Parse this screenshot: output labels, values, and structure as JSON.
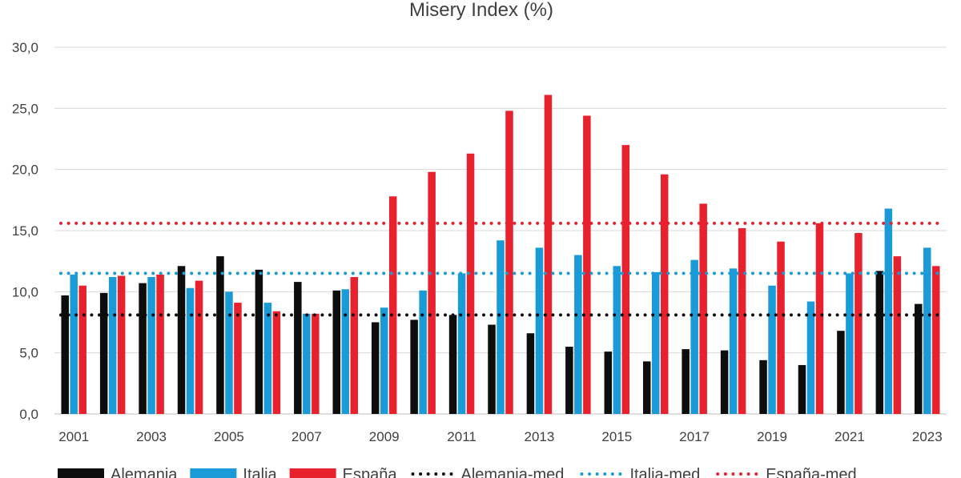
{
  "chart_data": {
    "type": "bar",
    "title": "Misery Index (%)",
    "xlabel": "",
    "ylabel": "",
    "ylim": [
      0,
      30
    ],
    "yticks": [
      "0,0",
      "5,0",
      "10,0",
      "15,0",
      "20,0",
      "25,0",
      "30,0"
    ],
    "grid": true,
    "legend_position": "bottom",
    "categories": [
      "2001",
      "2002",
      "2003",
      "2004",
      "2005",
      "2006",
      "2007",
      "2008",
      "2009",
      "2010",
      "2011",
      "2012",
      "2013",
      "2014",
      "2015",
      "2016",
      "2017",
      "2018",
      "2019",
      "2020",
      "2021",
      "2022",
      "2023"
    ],
    "xtick_labels": [
      "2001",
      "2003",
      "2005",
      "2007",
      "2009",
      "2011",
      "2013",
      "2015",
      "2017",
      "2019",
      "2021",
      "2023"
    ],
    "series": [
      {
        "name": "Alemania",
        "color": "#0d0d0d",
        "values": [
          9.7,
          9.9,
          10.7,
          12.1,
          12.9,
          11.8,
          10.8,
          10.1,
          7.5,
          7.7,
          8.1,
          7.3,
          6.6,
          5.5,
          5.1,
          4.3,
          5.3,
          5.2,
          4.4,
          4.0,
          6.8,
          11.7,
          9.0
        ]
      },
      {
        "name": "Italia",
        "color": "#1a9ad6",
        "values": [
          11.4,
          11.2,
          11.2,
          10.3,
          10.0,
          9.1,
          8.2,
          10.2,
          8.7,
          10.1,
          11.5,
          14.2,
          13.6,
          13.0,
          12.1,
          11.6,
          12.6,
          11.9,
          10.5,
          9.2,
          11.5,
          16.8,
          13.6
        ]
      },
      {
        "name": "España",
        "color": "#e8212e",
        "values": [
          10.5,
          11.3,
          11.4,
          10.9,
          9.1,
          8.4,
          8.2,
          11.2,
          17.8,
          19.8,
          21.3,
          24.8,
          26.1,
          24.4,
          22.0,
          19.6,
          17.2,
          15.2,
          14.1,
          15.6,
          14.8,
          12.9,
          12.1
        ]
      }
    ],
    "reference_lines": [
      {
        "name": "Alemania-med",
        "color": "#0d0d0d",
        "value": 8.1
      },
      {
        "name": "Italia-med",
        "color": "#1a9ad6",
        "value": 11.5
      },
      {
        "name": "España-med",
        "color": "#e8212e",
        "value": 15.6
      }
    ]
  }
}
